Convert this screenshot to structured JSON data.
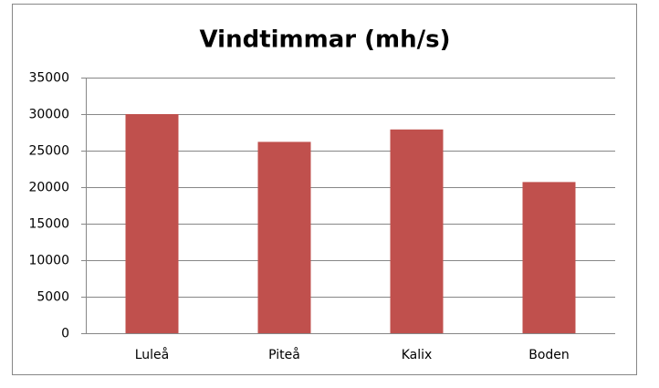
{
  "chart_data": {
    "type": "bar",
    "title": "Vindtimmar (mh/s)",
    "categories": [
      "Luleå",
      "Piteå",
      "Kalix",
      "Boden"
    ],
    "values": [
      30000,
      26200,
      27900,
      20700
    ],
    "color": "#c0504d",
    "ylim": [
      0,
      35000
    ],
    "yticks": [
      0,
      5000,
      10000,
      15000,
      20000,
      25000,
      30000,
      35000
    ],
    "grid": true
  }
}
